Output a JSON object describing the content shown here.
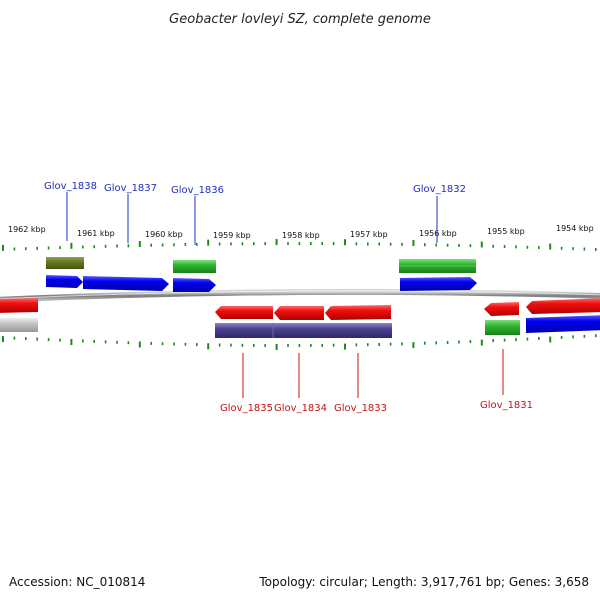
{
  "title": "Geobacter lovleyi SZ, complete genome",
  "footer": {
    "accession": "Accession: NC_010814",
    "topology": "Topology: circular; Length: 3,917,761 bp; Genes: 3,658"
  },
  "scale_labels": [
    "1962 kbp",
    "1961 kbp",
    "1960 kbp",
    "1959 kbp",
    "1958 kbp",
    "1957 kbp",
    "1956 kbp",
    "1955 kbp",
    "1954 kbp"
  ],
  "genes_top": [
    "Glov_1838",
    "Glov_1837",
    "Glov_1836",
    "Glov_1832"
  ],
  "genes_bottom": [
    "Glov_1835",
    "Glov_1834",
    "Glov_1833",
    "Glov_1831"
  ],
  "colors": {
    "forward_cds": "#0a0aee",
    "reverse_cds": "#ee1111",
    "gene_band_green": "#2fb52f",
    "gene_band_olive": "#667a20",
    "gene_band_purple": "#4a4290",
    "gene_band_gray": "#bdbdbd",
    "backbone": "#8a8a8a",
    "ticks": "#1e8a1e"
  }
}
